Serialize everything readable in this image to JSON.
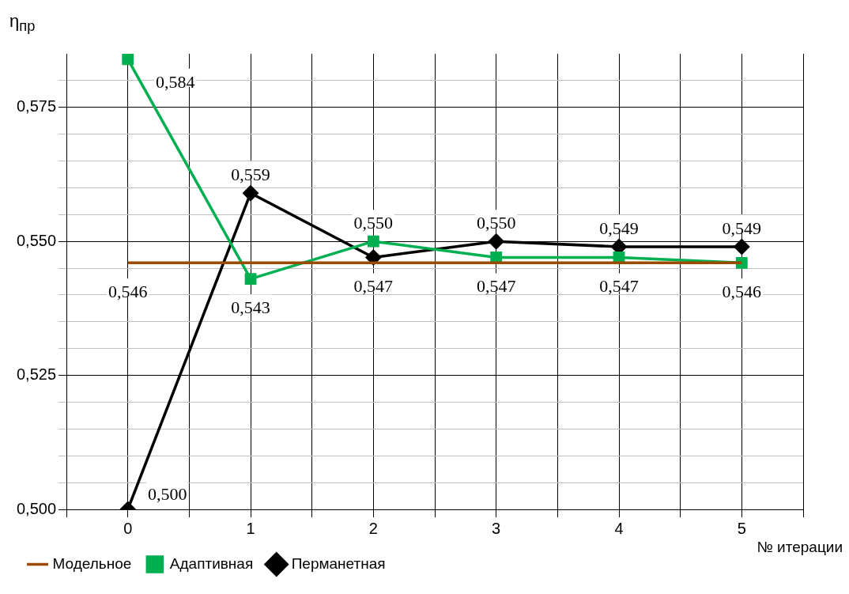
{
  "chart_data": {
    "type": "line",
    "ylabel": "η$_{пр}$",
    "xlabel": "№ итерации",
    "x": [
      0,
      1,
      2,
      3,
      4,
      5
    ],
    "xlim": [
      -0.5,
      5.5
    ],
    "xticks": [
      {
        "value": -0.5,
        "label": null
      },
      0,
      {
        "value": 0.5,
        "label": null
      },
      1,
      {
        "value": 1.5,
        "label": null
      },
      2,
      {
        "value": 2.5,
        "label": null
      },
      3,
      {
        "value": 3.5,
        "label": null
      },
      4,
      {
        "value": 4.5,
        "label": null
      },
      5,
      {
        "value": 5.5,
        "label": null
      }
    ],
    "ylim": [
      0.5,
      0.585
    ],
    "yticks": [
      {
        "value": 0.5,
        "label": "0,500"
      },
      {
        "value": 0.505,
        "label": null
      },
      {
        "value": 0.51,
        "label": null
      },
      {
        "value": 0.515,
        "label": null
      },
      {
        "value": 0.52,
        "label": null
      },
      {
        "value": 0.525,
        "label": "0,525"
      },
      {
        "value": 0.53,
        "label": null
      },
      {
        "value": 0.535,
        "label": null
      },
      {
        "value": 0.54,
        "label": null
      },
      {
        "value": 0.545,
        "label": null
      },
      {
        "value": 0.55,
        "label": "0,550"
      },
      {
        "value": 0.555,
        "label": null
      },
      {
        "value": 0.56,
        "label": null
      },
      {
        "value": 0.565,
        "label": null
      },
      {
        "value": 0.57,
        "label": null
      },
      {
        "value": 0.575,
        "label": "0,575"
      },
      {
        "value": 0.58,
        "label": null
      }
    ],
    "grid": true,
    "legend": "bottom",
    "series": [
      {
        "name": "Адаптивная",
        "color": "#00b050",
        "marker": "square",
        "values": [
          0.584,
          0.543,
          0.55,
          0.547,
          0.547,
          0.546
        ],
        "value_labels": [
          "0,584",
          "0,543",
          "0,550",
          "0,547",
          "0,547",
          "0,546"
        ]
      },
      {
        "name": "Перманетная",
        "color": "#000000",
        "marker": "diamond",
        "values": [
          0.5,
          0.559,
          0.547,
          0.55,
          0.549,
          0.549
        ],
        "value_labels": [
          "0,500",
          "0,559",
          "0,547",
          "0,550",
          "0,549",
          "0,549"
        ]
      },
      {
        "name": "Модельное",
        "color": "#9c4a00",
        "marker": "none",
        "values": [
          0.546,
          0.546,
          0.546,
          0.546,
          0.546,
          0.546
        ],
        "value_labels": [
          "0,546",
          null,
          null,
          null,
          null,
          null
        ]
      }
    ]
  }
}
